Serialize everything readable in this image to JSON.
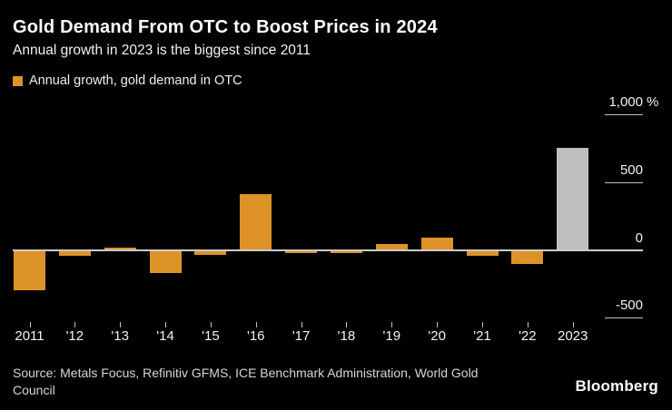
{
  "header": {
    "title": "Gold Demand From OTC to Boost Prices in 2024",
    "subtitle": "Annual growth in 2023 is the biggest since 2011"
  },
  "legend": {
    "label": "Annual growth, gold demand in OTC"
  },
  "chart_data": {
    "type": "bar",
    "title": "Gold Demand From OTC to Boost Prices in 2024",
    "subtitle": "Annual growth in 2023 is the biggest since 2011",
    "series_name": "Annual growth, gold demand in OTC",
    "categories": [
      "2011",
      "'12",
      "'13",
      "'14",
      "'15",
      "'16",
      "'17",
      "'18",
      "'19",
      "'20",
      "'21",
      "'22",
      "2023"
    ],
    "values": [
      -290,
      -40,
      15,
      -165,
      -30,
      415,
      -20,
      -20,
      45,
      90,
      -40,
      -95,
      755
    ],
    "unit": "%",
    "ylim": [
      -650,
      1100
    ],
    "yticks": [
      1000,
      500,
      0,
      -500
    ],
    "ytick_labels": [
      "1,000",
      "500",
      "0",
      "-500"
    ],
    "bar_color": "#de9328",
    "highlight": {
      "index": 12,
      "color": "#bfbfbf"
    },
    "legend_position": "top-left",
    "grid": "right-tick-dashes-only",
    "axis_side": "right"
  },
  "footer": {
    "source_lines": [
      "Source: Metals Focus, Refinitiv GFMS, ICE Benchmark Administration, World Gold",
      "Council"
    ],
    "brand": "Bloomberg"
  },
  "colors": {
    "background": "#000000",
    "accent_orange": "#de9328",
    "highlight_gray": "#bfbfbf",
    "axis_line": "#cbcbcb",
    "text_primary": "#ffffff",
    "text_secondary": "#d6d6d6"
  }
}
